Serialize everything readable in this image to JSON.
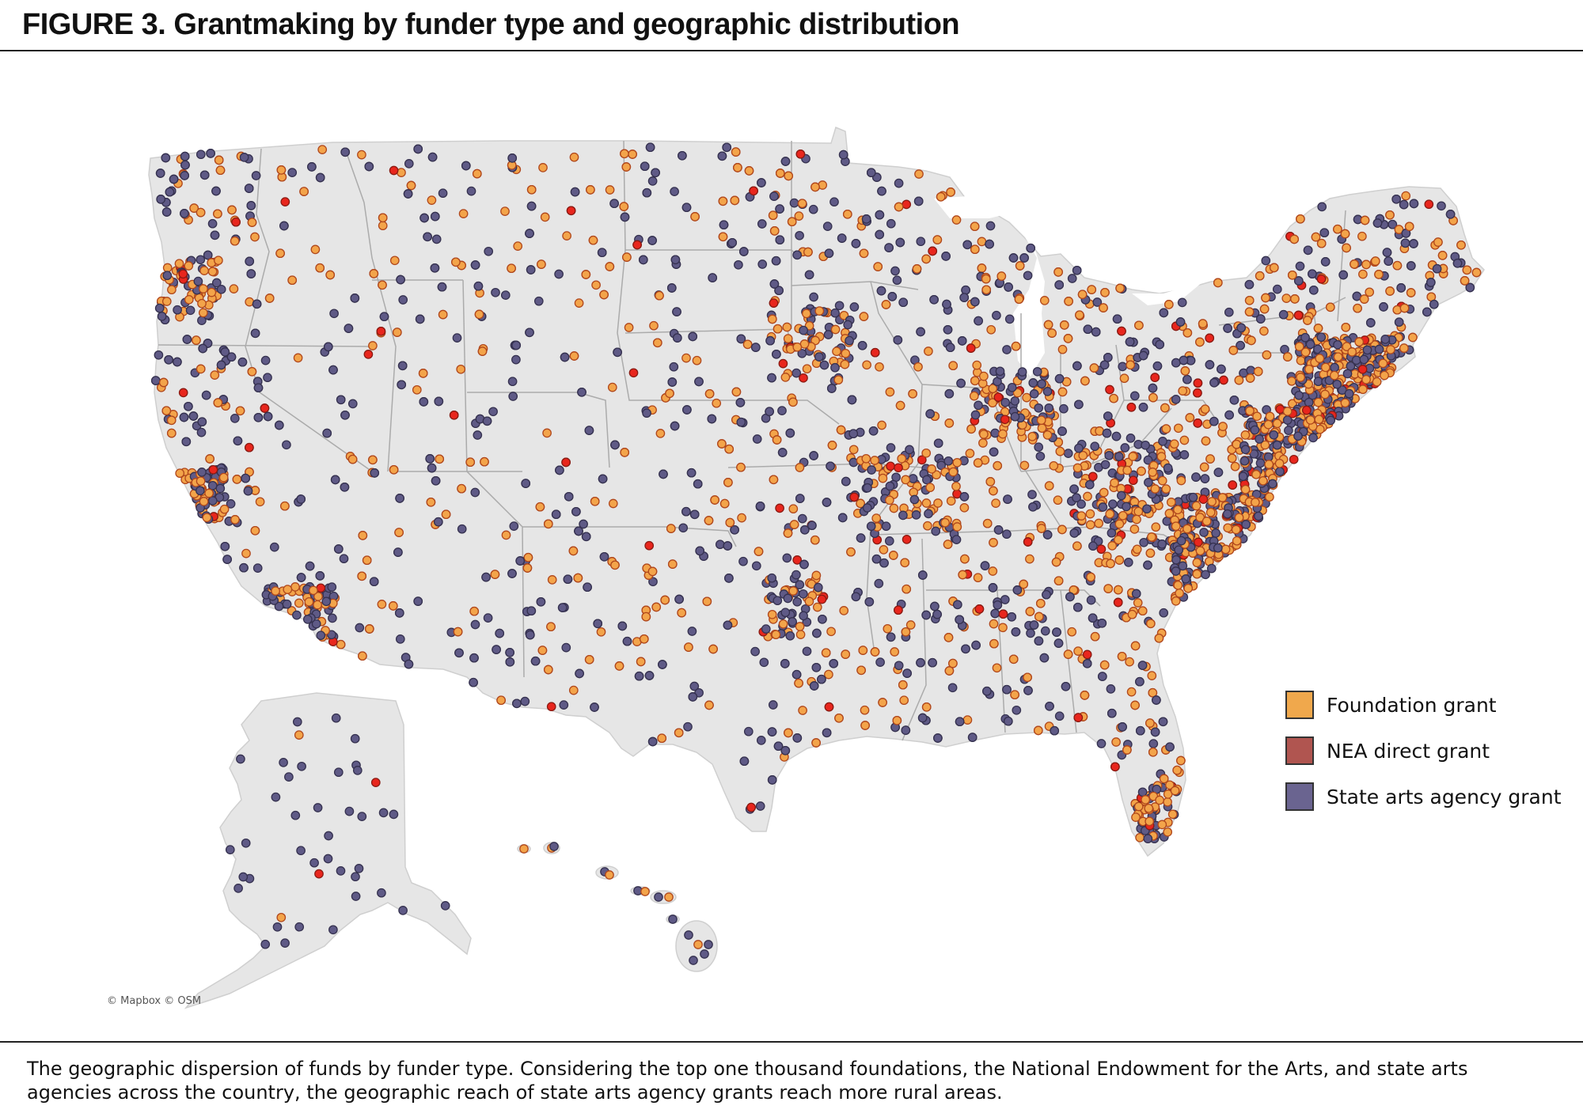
{
  "figure": {
    "title": "FIGURE 3. Grantmaking by funder type and geographic distribution",
    "caption": "The geographic dispersion of funds by funder type. Considering the top one thousand foundations, the National Endowment for the Arts, and state arts agencies across the country, the geographic reach of state arts agency grants reach more rural areas."
  },
  "map": {
    "attribution": "© Mapbox © OSM",
    "land_color": "#e6e6e6",
    "border_color": "#ababab",
    "region_names": [
      "contiguous-us",
      "alaska",
      "hawaii"
    ]
  },
  "legend": {
    "items": [
      {
        "key": "foundation",
        "label": "Foundation grant",
        "color": "#f0a84c"
      },
      {
        "key": "nea",
        "label": "NEA direct grant",
        "color": "#b05550"
      },
      {
        "key": "state",
        "label": "State arts agency grant",
        "color": "#6a6490"
      }
    ]
  },
  "markers": {
    "foundation_color": "#f3a44a",
    "foundation_stroke": "#b0471c",
    "nea_color": "#e8261d",
    "nea_stroke": "#8a1a12",
    "state_color": "#5f5a86",
    "state_stroke": "#35314f"
  }
}
